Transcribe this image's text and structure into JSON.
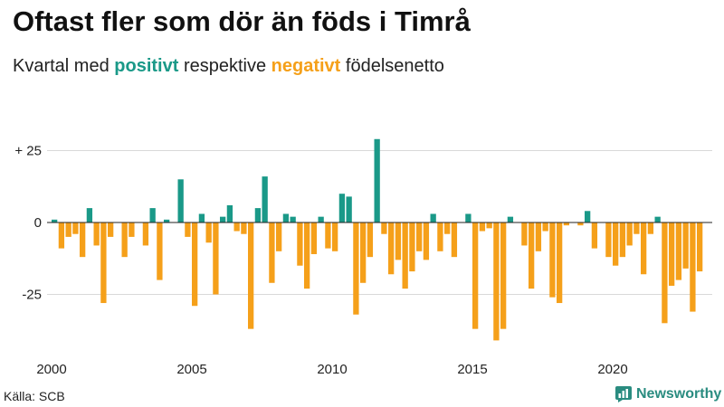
{
  "title": "Oftast fler som dör än föds i Timrå",
  "subtitle": {
    "prefix": "Kvartal med ",
    "positive_word": "positivt",
    "middle": " respektive ",
    "negative_word": "negativt",
    "suffix": " födelsenetto"
  },
  "source": "Källa: SCB",
  "brand": "Newsworthy",
  "colors": {
    "positive": "#1a9988",
    "negative": "#f5a01a",
    "brand": "#2a8c80"
  },
  "chart_data": {
    "type": "bar",
    "title": "Oftast fler som dör än föds i Timrå",
    "xlabel": "",
    "ylabel": "",
    "start_year": 2000,
    "ylim": [
      -42,
      30
    ],
    "y_ticks": [
      {
        "value": 25,
        "label": "+ 25"
      },
      {
        "value": 0,
        "label": "0"
      },
      {
        "value": -25,
        "label": "-25"
      }
    ],
    "x_ticks": [
      {
        "year": 2000,
        "label": "2000"
      },
      {
        "year": 2005,
        "label": "2005"
      },
      {
        "year": 2010,
        "label": "2010"
      },
      {
        "year": 2015,
        "label": "2015"
      },
      {
        "year": 2020,
        "label": "2020"
      }
    ],
    "values": [
      1,
      -9,
      -5,
      -4,
      -12,
      5,
      -8,
      -28,
      -5,
      0,
      -12,
      -5,
      0,
      -8,
      5,
      -20,
      1,
      0,
      15,
      -5,
      -29,
      3,
      -7,
      -25,
      2,
      6,
      -3,
      -4,
      -37,
      5,
      16,
      -21,
      -10,
      3,
      2,
      -15,
      -23,
      -11,
      2,
      -9,
      -10,
      10,
      9,
      -32,
      -21,
      -12,
      29,
      -4,
      -18,
      -13,
      -23,
      -17,
      -10,
      -13,
      3,
      -10,
      -4,
      -12,
      0,
      3,
      -37,
      -3,
      -2,
      -41,
      -37,
      2,
      0,
      -8,
      -23,
      -10,
      -3,
      -26,
      -28,
      -1,
      0,
      -1,
      4,
      -9,
      0,
      -12,
      -15,
      -12,
      -8,
      -4,
      -18,
      -4,
      2,
      -35,
      -22,
      -20,
      -16,
      -31,
      -17
    ]
  }
}
